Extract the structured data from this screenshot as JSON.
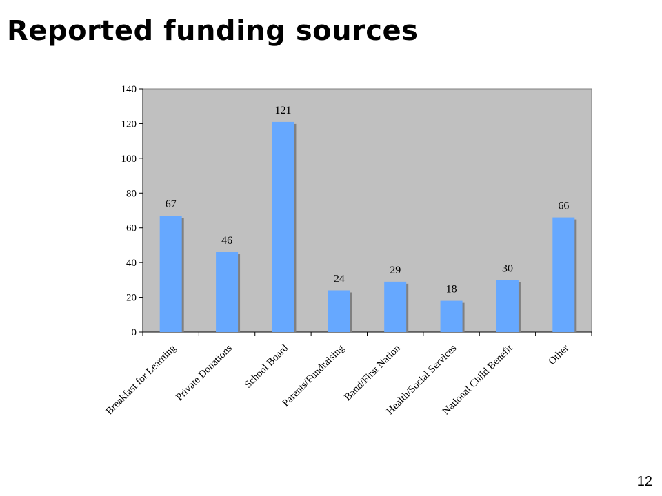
{
  "slide": {
    "title": "Reported funding sources",
    "page_number": "12"
  },
  "colors": {
    "plot_background": "#c0c0c0",
    "bar_fill": "#66a8ff",
    "bar_shadow": "#808080",
    "axis": "#000000"
  },
  "chart_data": {
    "type": "bar",
    "title": "",
    "xlabel": "",
    "ylabel": "",
    "categories": [
      "Breakfast for Learning",
      "Private Donations",
      "School Board",
      "Parents/Fundraising",
      "Band/First Nation",
      "Health/Social Services",
      "National Child Benefit",
      "Other"
    ],
    "values": [
      67,
      46,
      121,
      24,
      29,
      18,
      30,
      66
    ],
    "ylim": [
      0,
      140
    ],
    "yticks": [
      0,
      20,
      40,
      60,
      80,
      100,
      120,
      140
    ],
    "grid": false,
    "legend": "none",
    "data_labels": true
  }
}
